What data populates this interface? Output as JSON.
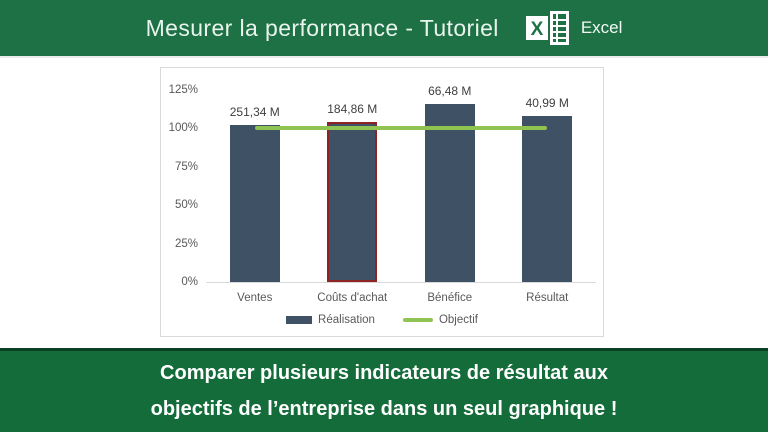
{
  "header": {
    "title": "Mesurer la performance - Tutoriel",
    "app_name": "Excel"
  },
  "chart_data": {
    "type": "bar",
    "categories": [
      "Ventes",
      "Coûts d'achat",
      "Bénéfice",
      "Résultat"
    ],
    "series": [
      {
        "name": "Réalisation",
        "type": "bar",
        "values_pct": [
          102,
          104,
          116,
          108
        ],
        "data_labels": [
          "251,34 M",
          "184,86 M",
          "66,48 M",
          "40,99 M"
        ],
        "color": "#3f5265"
      },
      {
        "name": "Objectif",
        "type": "line",
        "value_pct": 100,
        "color": "#90c452"
      }
    ],
    "highlight": {
      "category": "Coûts d'achat",
      "index": 1,
      "border_color": "#8e2323"
    },
    "y_axis": {
      "tick_labels": [
        "125%",
        "100%",
        "75%",
        "50%",
        "25%",
        "0%"
      ],
      "min": 0,
      "max": 125,
      "unit": "%"
    },
    "legend": {
      "position": "bottom",
      "entries": [
        "Réalisation",
        "Objectif"
      ]
    },
    "grid": false
  },
  "footer": {
    "line1": "Comparer plusieurs indicateurs de résultat aux",
    "line2": "objectifs de l’entreprise dans un seul graphique !"
  },
  "theme": {
    "header_green": "#1e7145",
    "footer_green": "#146c3a",
    "axis_text": "#595959",
    "data_label_text": "#3f3f3f",
    "excel_logo_white": "#ffffff"
  }
}
